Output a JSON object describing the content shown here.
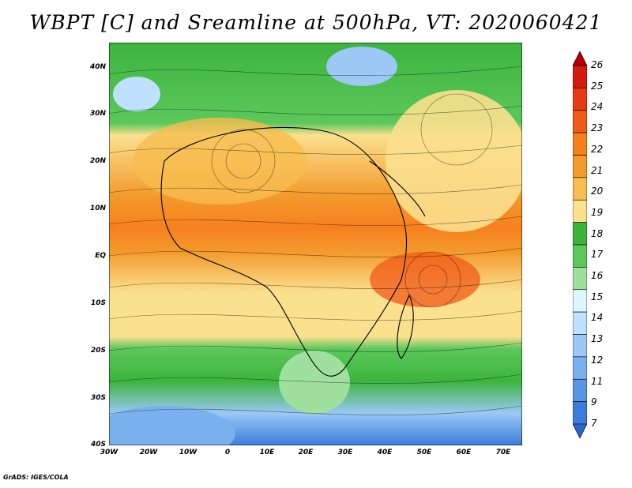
{
  "title": "WBPT [C] and Sreamline at 500hPa, VT: 2020060421",
  "footer": "GrADS: IGES/COLA",
  "map": {
    "lat_labels": [
      "40N",
      "30N",
      "20N",
      "10N",
      "EQ",
      "10S",
      "20S",
      "30S",
      "40S"
    ],
    "lon_labels": [
      "30W",
      "20W",
      "10W",
      "0",
      "10E",
      "20E",
      "30E",
      "40E",
      "50E",
      "60E",
      "70E"
    ],
    "lat_range": [
      -40,
      45
    ],
    "lon_range": [
      -30,
      75
    ]
  },
  "colorbar": {
    "labels": [
      "26",
      "25",
      "24",
      "23",
      "22",
      "21",
      "20",
      "19",
      "18",
      "17",
      "16",
      "15",
      "14",
      "13",
      "12",
      "11",
      "9",
      "7"
    ],
    "colors": [
      "#b00000",
      "#d41a10",
      "#e83a14",
      "#f25a18",
      "#f7801e",
      "#f39a2c",
      "#f7bd50",
      "#fbe08e",
      "#3cb43c",
      "#5cc85c",
      "#9fe09f",
      "#dff5ff",
      "#bfe0ff",
      "#9bc8f5",
      "#79b0ee",
      "#5896e6",
      "#3c7ddc",
      "#2a65cc"
    ]
  }
}
